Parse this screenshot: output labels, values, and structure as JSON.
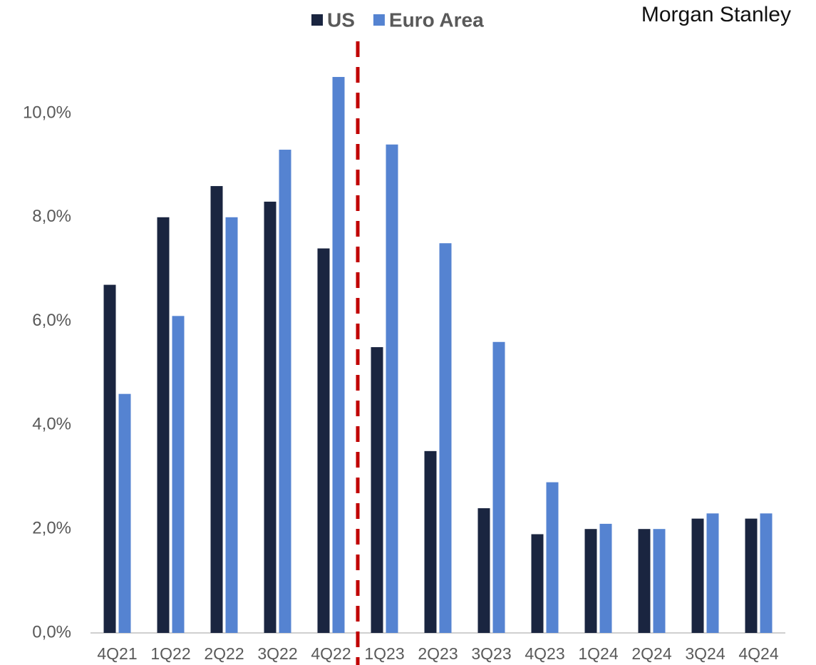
{
  "brand": "Morgan Stanley",
  "chart_data": {
    "type": "bar",
    "categories": [
      "4Q21",
      "1Q22",
      "2Q22",
      "3Q22",
      "4Q22",
      "1Q23",
      "2Q23",
      "3Q23",
      "4Q23",
      "1Q24",
      "2Q24",
      "3Q24",
      "4Q24"
    ],
    "series": [
      {
        "name": "US",
        "color": "#1a2540",
        "values": [
          6.7,
          8.0,
          8.6,
          8.3,
          7.4,
          5.5,
          3.5,
          2.4,
          1.9,
          2.0,
          2.0,
          2.2,
          2.2
        ]
      },
      {
        "name": "Euro Area",
        "color": "#5583d1",
        "values": [
          4.6,
          6.1,
          8.0,
          9.3,
          10.7,
          9.4,
          7.5,
          5.6,
          2.9,
          2.1,
          2.0,
          2.3,
          2.3
        ]
      }
    ],
    "ylim": [
      0,
      11
    ],
    "yticks": [
      {
        "value": 0,
        "label": "0,0%"
      },
      {
        "value": 2,
        "label": "2,0%"
      },
      {
        "value": 4,
        "label": "4,0%"
      },
      {
        "value": 6,
        "label": "6,0%"
      },
      {
        "value": 8,
        "label": "8,0%"
      },
      {
        "value": 10,
        "label": "10,0%"
      }
    ],
    "legend": "top"
  }
}
